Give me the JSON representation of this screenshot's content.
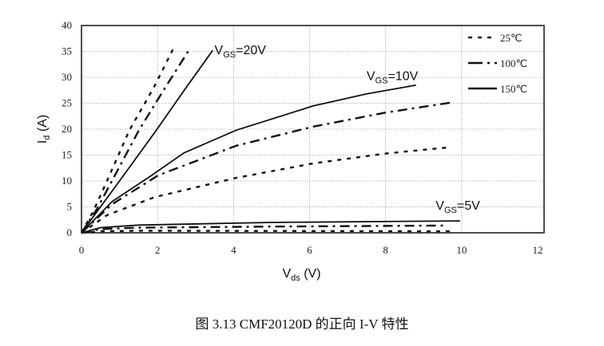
{
  "chart_data": {
    "type": "line",
    "xlabel": {
      "main": "V",
      "sub": "ds",
      "unit": " (V)"
    },
    "ylabel": {
      "main": "I",
      "sub": "d",
      "unit": " (A)"
    },
    "xlim": [
      0,
      12
    ],
    "ylim": [
      0,
      40
    ],
    "xticks": [
      "0",
      "2",
      "4",
      "6",
      "8",
      "10",
      "12"
    ],
    "yticks": [
      "0",
      "5",
      "10",
      "15",
      "20",
      "25",
      "30",
      "35",
      "40"
    ],
    "grid": true,
    "legend_placement": "top-right",
    "legend": [
      {
        "name": "25℃",
        "style": "dashed"
      },
      {
        "name": "100℃",
        "style": "dash-dot"
      },
      {
        "name": "150℃",
        "style": "solid"
      }
    ],
    "annotations": [
      {
        "text_main": "V",
        "text_sub": "GS",
        "text_rest": "=20V",
        "x": 3.5,
        "y": 35.2
      },
      {
        "text_main": "V",
        "text_sub": "GS",
        "text_rest": "=10V",
        "x": 7.5,
        "y": 30.2
      },
      {
        "text_main": "V",
        "text_sub": "GS",
        "text_rest": "=5V",
        "x": 9.4,
        "y": 5.2
      }
    ],
    "series": [
      {
        "group": "VGS=20V",
        "temp": "25℃",
        "points": [
          [
            0,
            0
          ],
          [
            0.3,
            4
          ],
          [
            0.67,
            10
          ],
          [
            1.26,
            19.8
          ],
          [
            1.9,
            28
          ],
          [
            2.46,
            36.2
          ]
        ]
      },
      {
        "group": "VGS=20V",
        "temp": "100℃",
        "points": [
          [
            0,
            0
          ],
          [
            0.4,
            4.5
          ],
          [
            0.8,
            10
          ],
          [
            1.51,
            19.8
          ],
          [
            2.2,
            28
          ],
          [
            2.84,
            35.4
          ]
        ]
      },
      {
        "group": "VGS=20V",
        "temp": "150℃",
        "points": [
          [
            0,
            0
          ],
          [
            0.5,
            5
          ],
          [
            1.0,
            10
          ],
          [
            1.97,
            19.8
          ],
          [
            2.7,
            27.5
          ],
          [
            3.45,
            35.2
          ]
        ]
      },
      {
        "group": "VGS=10V",
        "temp": "25℃",
        "points": [
          [
            0,
            0
          ],
          [
            0.67,
            3.4
          ],
          [
            1.93,
            6.9
          ],
          [
            4.07,
            10.6
          ],
          [
            6.1,
            13.4
          ],
          [
            8,
            15.3
          ],
          [
            9.66,
            16.5
          ]
        ]
      },
      {
        "group": "VGS=10V",
        "temp": "100℃",
        "points": [
          [
            0,
            0
          ],
          [
            0.8,
            5.5
          ],
          [
            2.02,
            11.1
          ],
          [
            4.07,
            16.8
          ],
          [
            6.1,
            20.5
          ],
          [
            8,
            23.2
          ],
          [
            9.7,
            25.1
          ]
        ]
      },
      {
        "group": "VGS=10V",
        "temp": "150℃",
        "points": [
          [
            0,
            0
          ],
          [
            0.8,
            6
          ],
          [
            1.85,
            11.1
          ],
          [
            2.69,
            15.4
          ],
          [
            4.07,
            19.8
          ],
          [
            6.1,
            24.5
          ],
          [
            7.5,
            26.8
          ],
          [
            8.8,
            28.5
          ]
        ]
      },
      {
        "group": "VGS=5V",
        "temp": "25℃",
        "points": [
          [
            0,
            0
          ],
          [
            0.5,
            0.3
          ],
          [
            1.5,
            0.4
          ],
          [
            5,
            0.35
          ],
          [
            9.83,
            0.3
          ]
        ]
      },
      {
        "group": "VGS=5V",
        "temp": "100℃",
        "points": [
          [
            0,
            0
          ],
          [
            0.5,
            0.7
          ],
          [
            1.5,
            1.0
          ],
          [
            5,
            1.2
          ],
          [
            9.62,
            1.4
          ]
        ]
      },
      {
        "group": "VGS=5V",
        "temp": "150℃",
        "points": [
          [
            0,
            0
          ],
          [
            0.5,
            1.0
          ],
          [
            1.5,
            1.5
          ],
          [
            5,
            2.0
          ],
          [
            9.96,
            2.3
          ]
        ]
      }
    ]
  },
  "caption": "图 3.13 CMF20120D 的正向 I-V 特性"
}
